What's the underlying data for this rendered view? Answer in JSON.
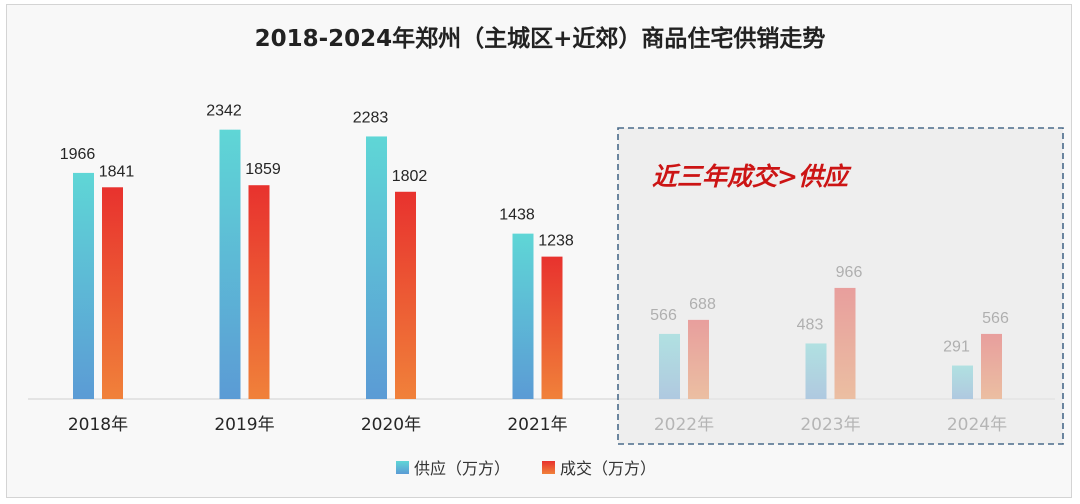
{
  "chart_data": {
    "type": "bar",
    "title": "2018-2024年郑州（主城区+近郊）商品住宅供销走势",
    "categories": [
      "2018年",
      "2019年",
      "2020年",
      "2021年",
      "2022年",
      "2023年",
      "2024年"
    ],
    "series": [
      {
        "name": "供应（万方）",
        "values": [
          1966,
          2342,
          2283,
          1438,
          566,
          483,
          291
        ]
      },
      {
        "name": "成交（万方）",
        "values": [
          1841,
          1859,
          1802,
          1238,
          688,
          966,
          566
        ]
      }
    ],
    "ylim": [
      0,
      2600
    ],
    "grid": false,
    "legend_position": "bottom",
    "annotation": {
      "text": "近三年成交>供应",
      "highlight_categories": [
        "2022年",
        "2023年",
        "2024年"
      ]
    },
    "colors": {
      "supply_top": "#5fd6d6",
      "supply_bottom": "#5b9bd5",
      "deal_top": "#e8322e",
      "deal_bottom": "#f0813a",
      "highlight_border": "#4a6b8a",
      "annotation": "#cc1414"
    }
  }
}
